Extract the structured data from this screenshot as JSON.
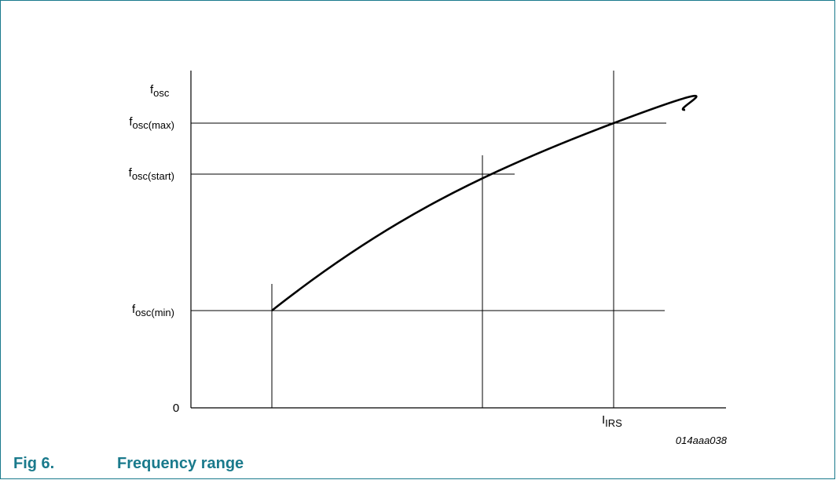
{
  "figure": {
    "number": "Fig 6.",
    "title": "Frequency range",
    "code": "014aaa038",
    "frame_color": "#1a7a8c"
  },
  "diagram": {
    "y_axis_label": {
      "base": "f",
      "sub": "osc"
    },
    "x_axis_label": {
      "base": "I",
      "sub": "IRS"
    },
    "origin_label": "0",
    "levels": [
      {
        "id": "max",
        "base": "f",
        "sub": "osc(max)"
      },
      {
        "id": "start",
        "base": "f",
        "sub": "osc(start)"
      },
      {
        "id": "min",
        "base": "f",
        "sub": "osc(min)"
      }
    ]
  }
}
